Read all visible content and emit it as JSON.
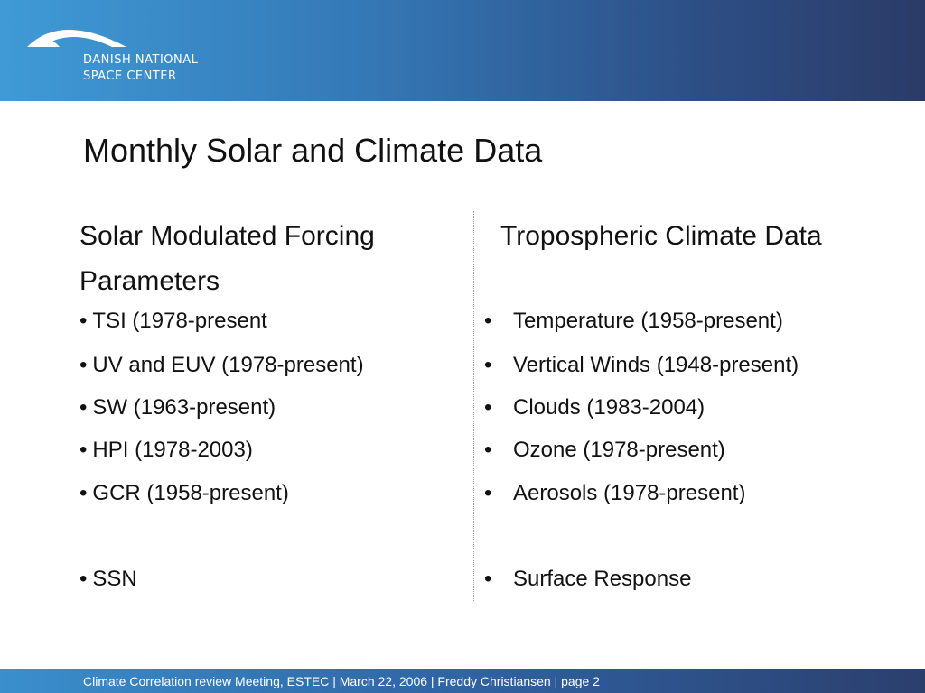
{
  "header": {
    "logo_line1": "DANISH NATIONAL",
    "logo_line2": "SPACE CENTER",
    "logo_icon": "dnsc-arc-logo"
  },
  "title": "Monthly Solar and Climate Data",
  "left_column": {
    "heading": "Solar Modulated Forcing Parameters",
    "items": [
      "TSI (1978-present",
      "UV and EUV (1978-present)",
      "SW (1963-present)",
      "HPI (1978-2003)",
      "GCR (1958-present)",
      "SSN"
    ],
    "bullet": "•"
  },
  "right_column": {
    "heading": "Tropospheric Climate Data",
    "items": [
      "Temperature (1958-present)",
      "Vertical Winds (1948-present)",
      "Clouds (1983-2004)",
      "Ozone (1978-present)",
      "Aerosols (1978-present)",
      "Surface Response"
    ],
    "bullet": "•"
  },
  "footer": {
    "text": "Climate Correlation review Meeting, ESTEC | March 22, 2006 | Freddy Christiansen | page 2"
  },
  "colors": {
    "header_start": "#3f9ad6",
    "header_end": "#2b3b67",
    "text": "#111111"
  }
}
